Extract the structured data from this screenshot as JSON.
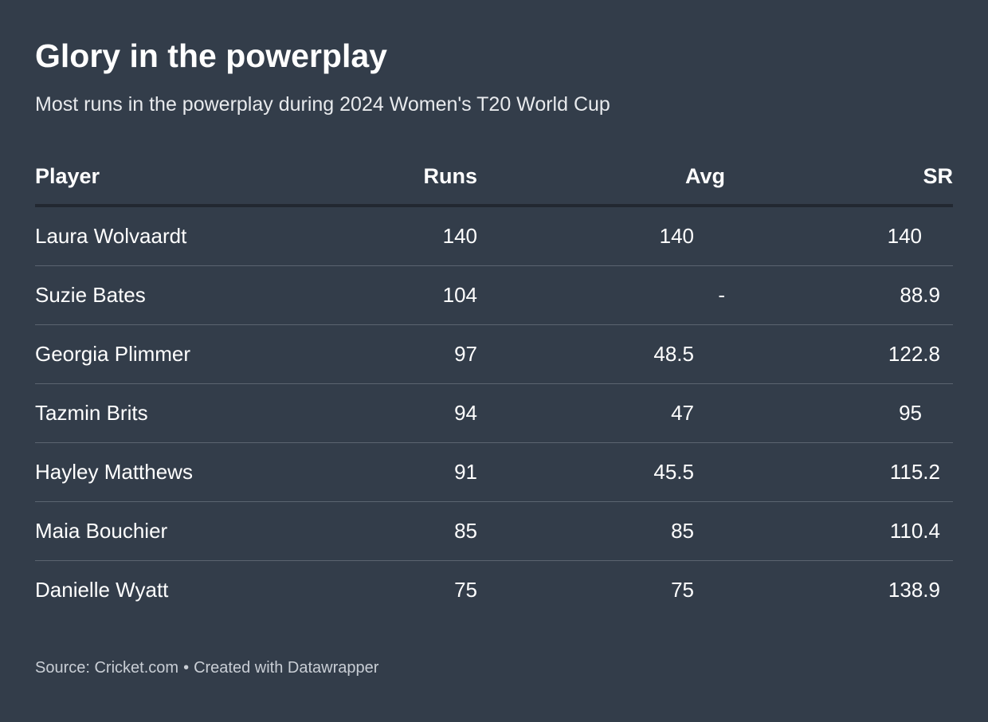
{
  "title": "Glory in the powerplay",
  "subtitle": "Most runs in the powerplay during 2024 Women's T20 World Cup",
  "footer": {
    "source": "Source: Cricket.com",
    "separator": "•",
    "credit": "Created with Datawrapper"
  },
  "colors": {
    "background": "#333d4a",
    "text": "#ffffff",
    "header_rule": "#222831",
    "row_rule": "#5b6470"
  },
  "chart_data": {
    "type": "table",
    "title": "Glory in the powerplay",
    "subtitle": "Most runs in the powerplay during 2024 Women's T20 World Cup",
    "columns": [
      "Player",
      "Runs",
      "Avg",
      "SR"
    ],
    "rows": [
      {
        "player": "Laura Wolvaardt",
        "runs": "140",
        "avg": "140",
        "sr": "140"
      },
      {
        "player": "Suzie Bates",
        "runs": "104",
        "avg": "-",
        "sr": "88.9"
      },
      {
        "player": "Georgia Plimmer",
        "runs": "97",
        "avg": "48.5",
        "sr": "122.8"
      },
      {
        "player": "Tazmin Brits",
        "runs": "94",
        "avg": "47",
        "sr": "95"
      },
      {
        "player": "Hayley Matthews",
        "runs": "91",
        "avg": "45.5",
        "sr": "115.2"
      },
      {
        "player": "Maia Bouchier",
        "runs": "85",
        "avg": "85",
        "sr": "110.4"
      },
      {
        "player": "Danielle Wyatt",
        "runs": "75",
        "avg": "75",
        "sr": "138.9"
      }
    ]
  }
}
